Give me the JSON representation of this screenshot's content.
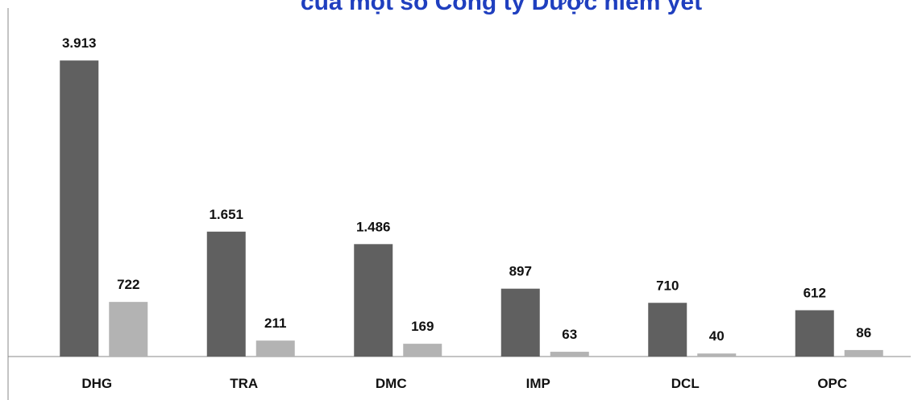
{
  "chart_data": {
    "type": "bar",
    "title": "của một số Công ty Dược niêm yết",
    "categories": [
      "DHG",
      "TRA",
      "DMC",
      "IMP",
      "DCL",
      "OPC"
    ],
    "series": [
      {
        "color": "#606060",
        "values": [
          3913,
          1651,
          1486,
          897,
          710,
          612
        ],
        "value_labels": [
          "3.913",
          "1.651",
          "1.486",
          "897",
          "710",
          "612"
        ]
      },
      {
        "color": "#b3b3b3",
        "values": [
          722,
          211,
          169,
          63,
          40,
          86
        ]
      }
    ],
    "ylim": [
      0,
      4000
    ]
  }
}
